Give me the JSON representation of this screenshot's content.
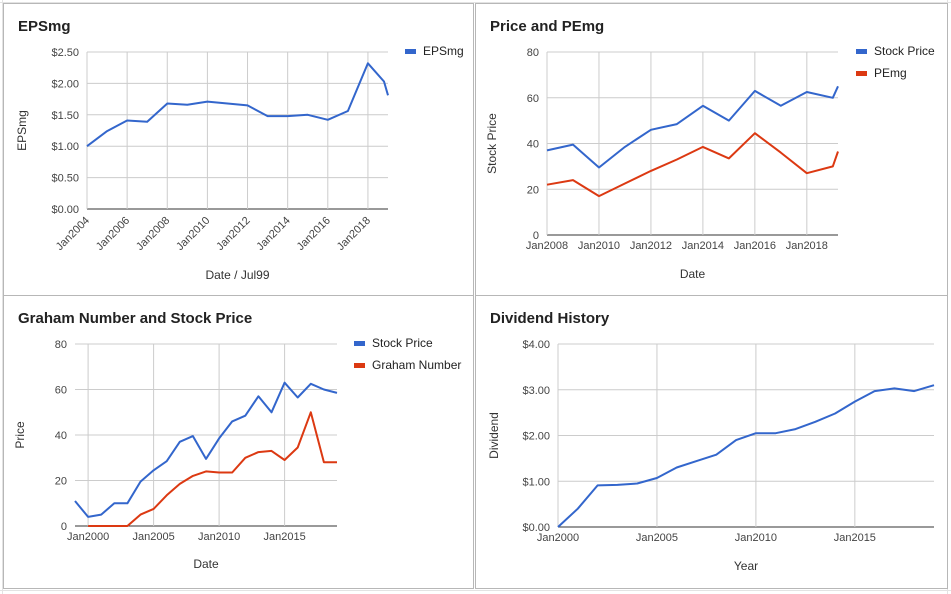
{
  "charts": [
    {
      "key": "eps",
      "title": "EPSmg",
      "xlabel": "Date / Jul99",
      "ylabel": "EPSmg",
      "chart_data": {
        "type": "line",
        "ylim": [
          0,
          2.5
        ],
        "yticks": [
          "$0.00",
          "$0.50",
          "$1.00",
          "$1.50",
          "$2.00",
          "$2.50"
        ],
        "xlim": [
          2004,
          2019
        ],
        "xticks": [
          {
            "v": 2004,
            "label": "Jan2004"
          },
          {
            "v": 2006,
            "label": "Jan2006"
          },
          {
            "v": 2008,
            "label": "Jan2008"
          },
          {
            "v": 2010,
            "label": "Jan2010"
          },
          {
            "v": 2012,
            "label": "Jan2012"
          },
          {
            "v": 2014,
            "label": "Jan2014"
          },
          {
            "v": 2016,
            "label": "Jan2016"
          },
          {
            "v": 2018,
            "label": "Jan2018"
          }
        ],
        "x_tick_rotation": -45,
        "legend": "top-right",
        "grid": true,
        "series": [
          {
            "name": "EPSmg",
            "color": "#3366cc",
            "x": [
              2004,
              2005,
              2006,
              2007,
              2008,
              2009,
              2010,
              2011,
              2012,
              2013,
              2014,
              2015,
              2016,
              2017,
              2018,
              2018.8,
              2019
            ],
            "values": [
              1.0,
              1.24,
              1.41,
              1.39,
              1.68,
              1.66,
              1.71,
              1.68,
              1.65,
              1.48,
              1.48,
              1.5,
              1.42,
              1.56,
              2.32,
              2.03,
              1.81
            ]
          }
        ]
      }
    },
    {
      "key": "pe",
      "title": "Price and PEmg",
      "xlabel": "Date",
      "ylabel": "Stock Price",
      "chart_data": {
        "type": "line",
        "ylim": [
          0,
          80
        ],
        "yticks": [
          "0",
          "20",
          "40",
          "60",
          "80"
        ],
        "xlim": [
          2008,
          2019.2
        ],
        "xticks": [
          {
            "v": 2008,
            "label": "Jan2008"
          },
          {
            "v": 2010,
            "label": "Jan2010"
          },
          {
            "v": 2012,
            "label": "Jan2012"
          },
          {
            "v": 2014,
            "label": "Jan2014"
          },
          {
            "v": 2016,
            "label": "Jan2016"
          },
          {
            "v": 2018,
            "label": "Jan2018"
          }
        ],
        "legend": "top-right",
        "grid": true,
        "series": [
          {
            "name": "Stock Price",
            "color": "#3366cc",
            "x": [
              2008,
              2009,
              2010,
              2011,
              2012,
              2013,
              2014,
              2015,
              2016,
              2017,
              2018,
              2019,
              2019.2
            ],
            "values": [
              37,
              39.5,
              29.5,
              38.5,
              46,
              48.5,
              56.5,
              50,
              63,
              56.5,
              62.5,
              60,
              65
            ]
          },
          {
            "name": "PEmg",
            "color": "#dc3912",
            "x": [
              2008,
              2009,
              2010,
              2011,
              2012,
              2013,
              2014,
              2015,
              2016,
              2017,
              2018,
              2019,
              2019.2
            ],
            "values": [
              22,
              24,
              17,
              22.5,
              28,
              33,
              38.5,
              33.5,
              44.5,
              36,
              27,
              30,
              36.5
            ]
          }
        ]
      }
    },
    {
      "key": "graham",
      "title": "Graham Number and Stock Price",
      "xlabel": "Date",
      "ylabel": "Price",
      "chart_data": {
        "type": "line",
        "ylim": [
          0,
          80
        ],
        "yticks": [
          "0",
          "20",
          "40",
          "60",
          "80"
        ],
        "xlim": [
          1999,
          2019
        ],
        "xticks": [
          {
            "v": 2000,
            "label": "Jan2000"
          },
          {
            "v": 2005,
            "label": "Jan2005"
          },
          {
            "v": 2010,
            "label": "Jan2010"
          },
          {
            "v": 2015,
            "label": "Jan2015"
          }
        ],
        "legend": "top-right",
        "grid": true,
        "series": [
          {
            "name": "Stock Price",
            "color": "#3366cc",
            "x": [
              1999,
              2000,
              2001,
              2002,
              2003,
              2004,
              2005,
              2006,
              2007,
              2008,
              2009,
              2010,
              2011,
              2012,
              2013,
              2014,
              2015,
              2016,
              2017,
              2018,
              2019
            ],
            "values": [
              11,
              4,
              5,
              10,
              10,
              19.5,
              24.5,
              28.5,
              37,
              39.5,
              29.5,
              38.5,
              46,
              48.5,
              57,
              50,
              63,
              56.5,
              62.5,
              60,
              58.5
            ]
          },
          {
            "name": "Graham Number",
            "color": "#dc3912",
            "x": [
              2000,
              2001,
              2002,
              2003,
              2004,
              2005,
              2006,
              2007,
              2008,
              2009,
              2010,
              2011,
              2012,
              2013,
              2014,
              2015,
              2016,
              2017,
              2018,
              2019
            ],
            "values": [
              0,
              0,
              0,
              0,
              5,
              7.5,
              13.5,
              18.5,
              22,
              24,
              23.5,
              23.5,
              30,
              32.5,
              33,
              29,
              34.5,
              50,
              28,
              28
            ]
          }
        ]
      }
    },
    {
      "key": "dividend",
      "title": "Dividend History",
      "xlabel": "Year",
      "ylabel": "Dividend",
      "chart_data": {
        "type": "line",
        "ylim": [
          0,
          4
        ],
        "yticks": [
          "$0.00",
          "$1.00",
          "$2.00",
          "$3.00",
          "$4.00"
        ],
        "xlim": [
          2000,
          2019
        ],
        "xticks": [
          {
            "v": 2000,
            "label": "Jan2000"
          },
          {
            "v": 2005,
            "label": "Jan2005"
          },
          {
            "v": 2010,
            "label": "Jan2010"
          },
          {
            "v": 2015,
            "label": "Jan2015"
          }
        ],
        "legend": "none",
        "grid": true,
        "series": [
          {
            "color": "#3366cc",
            "x": [
              2000,
              2001,
              2002,
              2003,
              2004,
              2005,
              2006,
              2007,
              2008,
              2009,
              2010,
              2011,
              2012,
              2013,
              2014,
              2015,
              2016,
              2017,
              2018,
              2019
            ],
            "values": [
              0.0,
              0.4,
              0.91,
              0.92,
              0.95,
              1.07,
              1.3,
              1.44,
              1.58,
              1.9,
              2.05,
              2.05,
              2.14,
              2.3,
              2.48,
              2.74,
              2.97,
              3.03,
              2.97,
              3.1
            ]
          }
        ]
      }
    }
  ]
}
